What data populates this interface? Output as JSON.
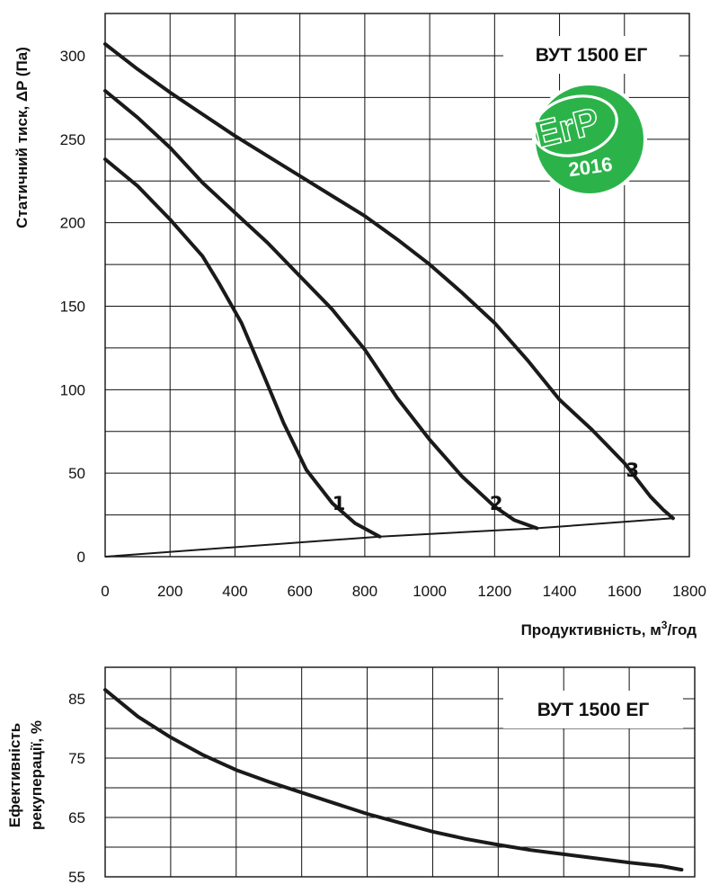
{
  "chart_data": [
    {
      "type": "line",
      "model": "ВУТ 1500 ЕГ",
      "badge": {
        "text": "ErP",
        "year": "2016",
        "color": "#2bb34a",
        "inner_color": "#ffffff"
      },
      "ylabel": "Статичний тиск, ΔP (Па)",
      "xlabel_main": "Продуктивність, м",
      "xlabel_sup": "3",
      "xlabel_tail": "/год",
      "xlim": [
        0,
        1800
      ],
      "ylim": [
        0,
        300
      ],
      "xticks": [
        "0",
        "200",
        "400",
        "600",
        "800",
        "1000",
        "1200",
        "1400",
        "1600",
        "1800"
      ],
      "yticks": [
        "0",
        "50",
        "100",
        "150",
        "200",
        "250",
        "300"
      ],
      "grid": true,
      "series": [
        {
          "name": "1",
          "points": [
            [
              0,
              238
            ],
            [
              100,
              222
            ],
            [
              200,
              202
            ],
            [
              300,
              180
            ],
            [
              350,
              164
            ],
            [
              420,
              140
            ],
            [
              490,
              108
            ],
            [
              550,
              80
            ],
            [
              620,
              52
            ],
            [
              700,
              32
            ],
            [
              770,
              20
            ],
            [
              846,
              12
            ]
          ],
          "label_at": [
            720,
            28
          ]
        },
        {
          "name": "2",
          "points": [
            [
              0,
              279
            ],
            [
              100,
              263
            ],
            [
              200,
              245
            ],
            [
              300,
              224
            ],
            [
              400,
              206
            ],
            [
              500,
              188
            ],
            [
              600,
              168
            ],
            [
              700,
              148
            ],
            [
              800,
              124
            ],
            [
              900,
              95
            ],
            [
              1000,
              70
            ],
            [
              1100,
              48
            ],
            [
              1200,
              30
            ],
            [
              1260,
              22
            ],
            [
              1330,
              17
            ]
          ],
          "label_at": [
            1205,
            28
          ]
        },
        {
          "name": "3",
          "points": [
            [
              0,
              307
            ],
            [
              100,
              292
            ],
            [
              200,
              278
            ],
            [
              300,
              265
            ],
            [
              400,
              252
            ],
            [
              500,
              240
            ],
            [
              600,
              228
            ],
            [
              700,
              216
            ],
            [
              800,
              204
            ],
            [
              900,
              190
            ],
            [
              1000,
              175
            ],
            [
              1100,
              158
            ],
            [
              1200,
              140
            ],
            [
              1300,
              118
            ],
            [
              1400,
              94
            ],
            [
              1500,
              76
            ],
            [
              1600,
              56
            ],
            [
              1680,
              36
            ],
            [
              1720,
              28
            ],
            [
              1750,
              23
            ]
          ],
          "label_at": [
            1625,
            48
          ]
        }
      ],
      "system_line": {
        "points": [
          [
            0,
            0
          ],
          [
            846,
            12
          ],
          [
            1330,
            17
          ],
          [
            1750,
            23
          ]
        ]
      }
    },
    {
      "type": "line",
      "model": "ВУТ 1500 ЕГ",
      "ylabel_line1": "Ефективність",
      "ylabel_line2": "рекуперації, %",
      "xlim": [
        0,
        1800
      ],
      "ylim": [
        55,
        90
      ],
      "yticks": [
        "55",
        "65",
        "75",
        "85"
      ],
      "grid": true,
      "series": [
        {
          "points": [
            [
              0,
              86.5
            ],
            [
              100,
              82
            ],
            [
              200,
              78.5
            ],
            [
              300,
              75.5
            ],
            [
              400,
              73
            ],
            [
              500,
              71
            ],
            [
              600,
              69.2
            ],
            [
              700,
              67.4
            ],
            [
              800,
              65.6
            ],
            [
              900,
              64.1
            ],
            [
              1000,
              62.6
            ],
            [
              1100,
              61.4
            ],
            [
              1200,
              60.4
            ],
            [
              1300,
              59.5
            ],
            [
              1400,
              58.8
            ],
            [
              1500,
              58.1
            ],
            [
              1600,
              57.4
            ],
            [
              1700,
              56.8
            ],
            [
              1760,
              56.2
            ]
          ]
        }
      ]
    }
  ]
}
